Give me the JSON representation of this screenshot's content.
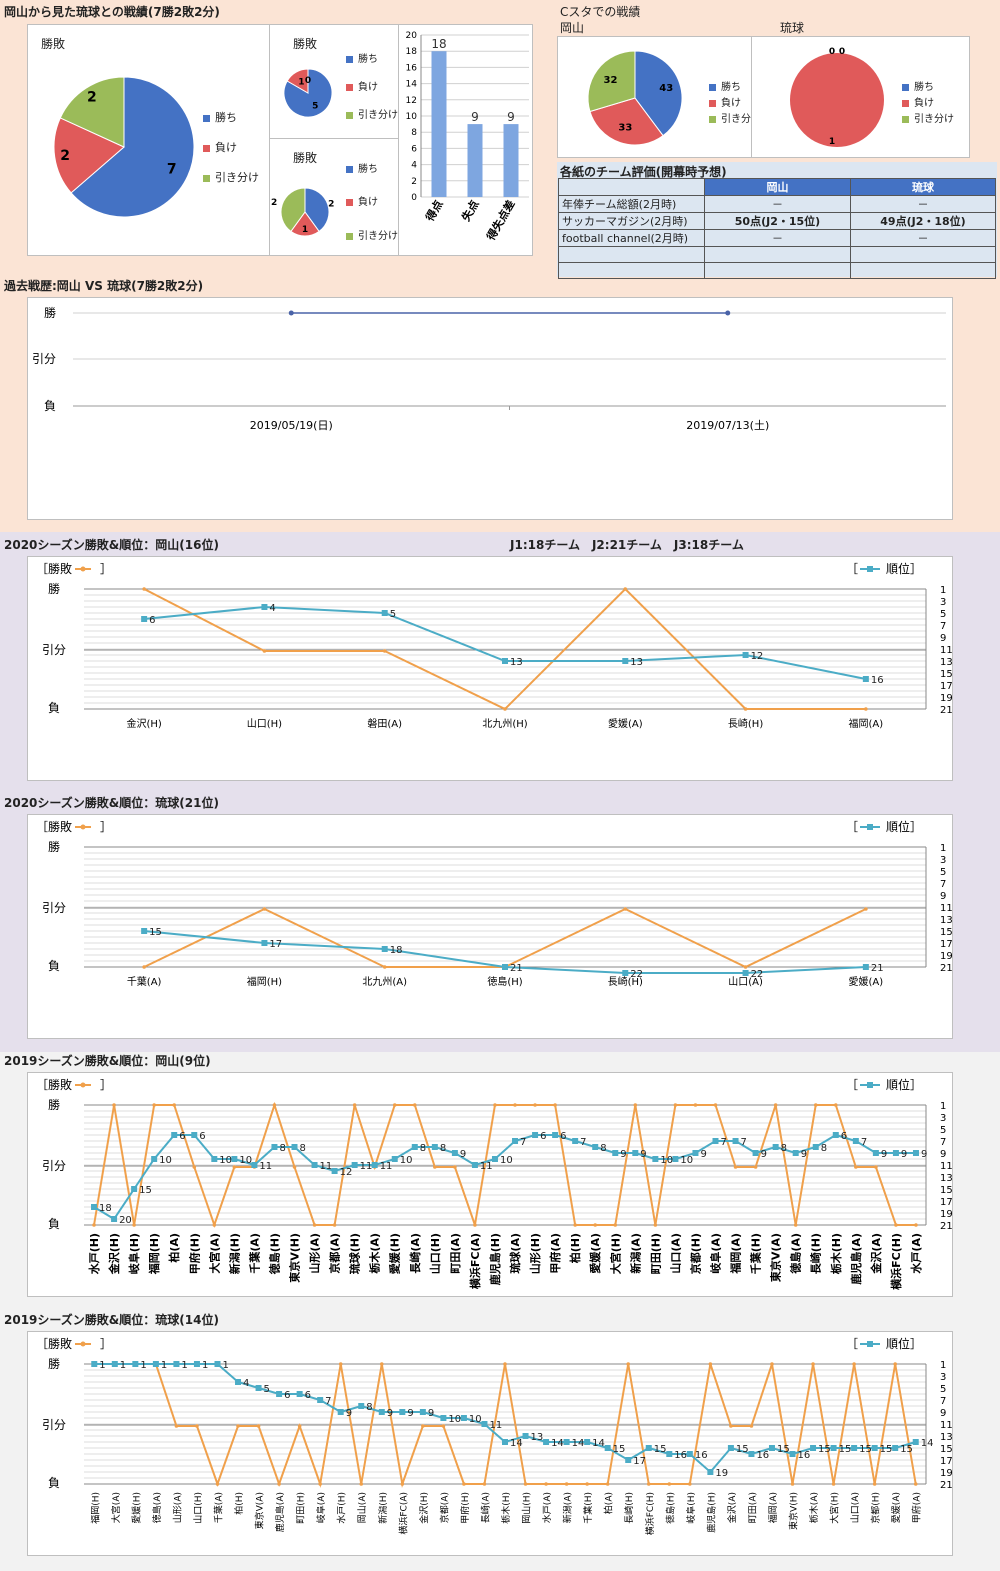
{
  "section1": {
    "title": "岡山から見た琉球との戦績(7勝2敗2分)",
    "big_pie_title": "勝敗",
    "small_pie1_title": "勝敗",
    "small_pie2_title": "勝敗",
    "legend": [
      "勝ち",
      "負け",
      "引き分け"
    ]
  },
  "cstadium": {
    "title": "Cスタでの戦績",
    "okayama": "岡山",
    "ryukyu": "琉球"
  },
  "evaluation": {
    "title": "各紙のチーム評価(開幕時予想)",
    "headers": [
      "",
      "岡山",
      "琉球"
    ],
    "rows": [
      [
        "年俸チーム総額(2月時)",
        "－",
        "－"
      ],
      [
        "サッカーマガジン(2月時)",
        "50点(J2・15位)",
        "49点(J2・18位)"
      ],
      [
        "football channel(2月時)",
        "－",
        "－"
      ],
      [
        "",
        "",
        ""
      ],
      [
        "",
        "",
        ""
      ]
    ]
  },
  "history": {
    "title": "過去戦歴:岡山 VS 琉球(7勝2敗2分)"
  },
  "j_info": "J1:18チーム　J2:21チーム　J3:18チーム",
  "common": {
    "result_legend": "［勝敗",
    "result_legend_end": "］",
    "rank_legend_start": "［",
    "rank_legend": "順位］",
    "result_axis": [
      "勝",
      "引分",
      "負"
    ]
  },
  "colors": {
    "win": "#4472c4",
    "lose": "#e05a5a",
    "draw": "#9bbb59",
    "result_line": "#f0a04b",
    "rank_line": "#4bacc6",
    "bar": "#7ea6e0"
  },
  "chart_data": [
    {
      "id": "big_pie",
      "type": "pie",
      "title": "勝敗",
      "labels": [
        "勝ち",
        "負け",
        "引き分け"
      ],
      "values": [
        7,
        2,
        2
      ]
    },
    {
      "id": "small_pie1",
      "type": "pie",
      "title": "勝敗",
      "labels": [
        "勝ち",
        "負け",
        "引き分け"
      ],
      "values": [
        5,
        1,
        0
      ]
    },
    {
      "id": "small_pie2",
      "type": "pie",
      "title": "勝敗",
      "labels": [
        "勝ち",
        "負け",
        "引き分け"
      ],
      "values": [
        2,
        1,
        2
      ]
    },
    {
      "id": "goals_bar",
      "type": "bar",
      "categories": [
        "得点",
        "失点",
        "得失点差"
      ],
      "values": [
        18,
        9,
        9
      ],
      "ylim": [
        0,
        20
      ],
      "yticks": [
        0,
        2,
        4,
        6,
        8,
        10,
        12,
        14,
        16,
        18,
        20
      ]
    },
    {
      "id": "cs_okayama",
      "type": "pie",
      "labels": [
        "勝ち",
        "負け",
        "引き分け"
      ],
      "values": [
        43,
        33,
        32
      ]
    },
    {
      "id": "cs_ryukyu",
      "type": "pie",
      "labels": [
        "勝ち",
        "負け",
        "引き分け"
      ],
      "values": [
        0,
        1,
        0
      ]
    },
    {
      "id": "history",
      "type": "line",
      "x": [
        "2019/05/19(日)",
        "2019/07/13(土)"
      ],
      "results": [
        "勝",
        "勝"
      ]
    },
    {
      "id": "okayama2020",
      "type": "line",
      "title": "2020シーズン勝敗&順位：岡山(16位)",
      "categories": [
        "金沢(H)",
        "山口(H)",
        "磐田(A)",
        "北九州(H)",
        "愛媛(A)",
        "長崎(H)",
        "福岡(A)"
      ],
      "results": [
        "W",
        "D",
        "D",
        "L",
        "W",
        "L",
        "L"
      ],
      "ranks": [
        6,
        4,
        5,
        13,
        13,
        12,
        16
      ]
    },
    {
      "id": "ryukyu2020",
      "type": "line",
      "title": "2020シーズン勝敗&順位：琉球(21位)",
      "categories": [
        "千葉(A)",
        "福岡(H)",
        "北九州(A)",
        "徳島(H)",
        "長崎(H)",
        "山口(A)",
        "愛媛(A)"
      ],
      "results": [
        "L",
        "D",
        "L",
        "L",
        "D",
        "L",
        "D"
      ],
      "ranks": [
        15,
        17,
        18,
        21,
        22,
        22,
        21
      ]
    },
    {
      "id": "okayama2019",
      "type": "line",
      "title": "2019シーズン勝敗&順位：岡山(9位)",
      "categories": [
        "水戸(H)",
        "金沢(H)",
        "岐阜(H)",
        "福岡(H)",
        "柏(A)",
        "甲府(H)",
        "大宮(A)",
        "新潟(H)",
        "千葉(A)",
        "徳島(H)",
        "東京V(H)",
        "山形(A)",
        "京都(A)",
        "琉球(H)",
        "栃木(A)",
        "愛媛(H)",
        "長崎(A)",
        "山口(H)",
        "町田(A)",
        "横浜FC(A)",
        "鹿児島(H)",
        "琉球(A)",
        "山形(H)",
        "甲府(A)",
        "柏(H)",
        "愛媛(A)",
        "大宮(H)",
        "新潟(A)",
        "町田(H)",
        "山口(A)",
        "京都(H)",
        "岐阜(A)",
        "福岡(A)",
        "千葉(H)",
        "東京V(A)",
        "徳島(A)",
        "長崎(H)",
        "栃木(H)",
        "鹿児島(A)",
        "金沢(A)",
        "横浜FC(H)",
        "水戸(A)"
      ],
      "results": [
        "L",
        "W",
        "L",
        "W",
        "W",
        "D",
        "L",
        "D",
        "D",
        "W",
        "D",
        "L",
        "L",
        "W",
        "D",
        "W",
        "W",
        "D",
        "D",
        "L",
        "W",
        "W",
        "W",
        "W",
        "L",
        "L",
        "L",
        "W",
        "L",
        "W",
        "W",
        "W",
        "D",
        "D",
        "W",
        "L",
        "W",
        "W",
        "D",
        "D",
        "L",
        "L"
      ],
      "ranks": [
        18,
        20,
        15,
        10,
        6,
        6,
        10,
        10,
        11,
        8,
        8,
        11,
        12,
        11,
        11,
        10,
        8,
        8,
        9,
        11,
        10,
        7,
        6,
        6,
        7,
        8,
        9,
        9,
        10,
        10,
        9,
        7,
        7,
        9,
        8,
        9,
        8,
        6,
        7,
        9,
        9,
        9
      ]
    },
    {
      "id": "ryukyu2019",
      "type": "line",
      "title": "2019シーズン勝敗&順位：琉球(14位)",
      "categories": [
        "福岡(H)",
        "大宮(A)",
        "愛媛(H)",
        "徳島(A)",
        "山形(A)",
        "山口(H)",
        "千葉(A)",
        "柏(H)",
        "東京V(A)",
        "鹿児島(A)",
        "町田(H)",
        "岐阜(A)",
        "水戸(H)",
        "岡山(A)",
        "新潟(H)",
        "横浜FC(A)",
        "金沢(H)",
        "京都(A)",
        "甲府(H)",
        "長崎(A)",
        "栃木(H)",
        "岡山(H)",
        "水戸(A)",
        "新潟(A)",
        "千葉(H)",
        "柏(A)",
        "長崎(H)",
        "横浜FC(H)",
        "徳島(H)",
        "岐阜(H)",
        "鹿児島(H)",
        "金沢(A)",
        "町田(A)",
        "福岡(A)",
        "東京V(H)",
        "栃木(A)",
        "大宮(H)",
        "山口(A)",
        "京都(H)",
        "愛媛(A)",
        "甲府(A)"
      ],
      "results": [
        "W",
        "W",
        "W",
        "W",
        "D",
        "D",
        "L",
        "D",
        "D",
        "L",
        "D",
        "L",
        "W",
        "L",
        "W",
        "L",
        "D",
        "D",
        "L",
        "L",
        "W",
        "L",
        "L",
        "L",
        "L",
        "L",
        "W",
        "L",
        "L",
        "L",
        "W",
        "D",
        "D",
        "W",
        "L",
        "W",
        "L",
        "W",
        "L",
        "W",
        "L"
      ],
      "ranks": [
        1,
        1,
        1,
        1,
        1,
        1,
        1,
        4,
        5,
        6,
        6,
        7,
        9,
        8,
        9,
        9,
        9,
        10,
        10,
        11,
        14,
        13,
        14,
        14,
        14,
        15,
        17,
        15,
        16,
        16,
        19,
        15,
        16,
        15,
        16,
        15,
        15,
        15,
        15,
        15,
        14
      ]
    }
  ]
}
